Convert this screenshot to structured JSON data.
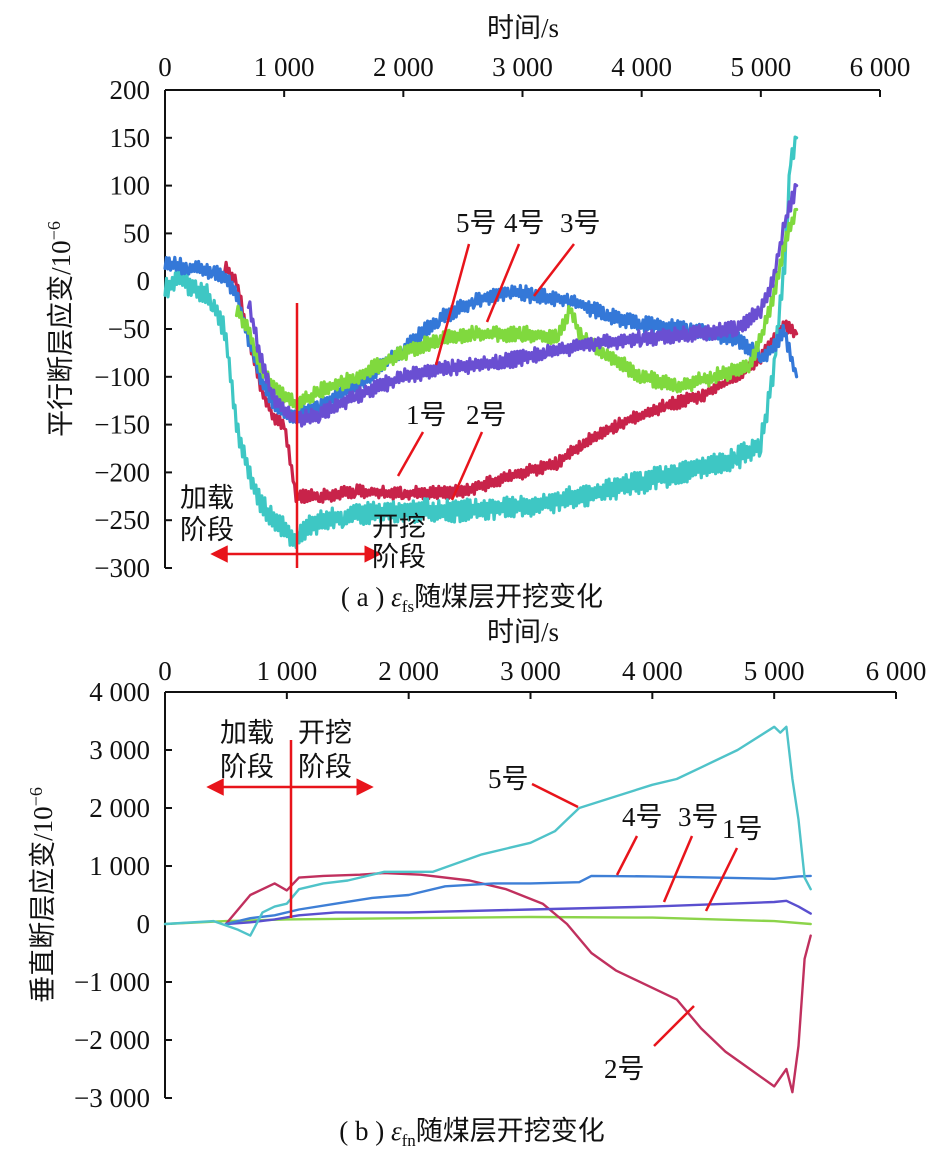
{
  "chart_data": [
    {
      "type": "line",
      "xlabel": "时间/s",
      "ylabel": "平行断层应变/10",
      "ylabel_sup": "−6",
      "caption_prefix": "( a ) ",
      "caption_symbol": "ε",
      "caption_sub": "fs",
      "caption_suffix": "随煤层开挖变化",
      "xlim": [
        0,
        6000
      ],
      "ylim": [
        -300,
        200
      ],
      "xticks": [
        0,
        1000,
        2000,
        3000,
        4000,
        5000,
        6000
      ],
      "xtick_labels": [
        "0",
        "1 000",
        "2 000",
        "3 000",
        "4 000",
        "5 000",
        "6 000"
      ],
      "yticks": [
        200,
        150,
        100,
        50,
        0,
        -50,
        -100,
        -150,
        -200,
        -250,
        -300
      ],
      "ytick_labels": [
        "200",
        "150",
        "100",
        "50",
        "0",
        "−50",
        "−100",
        "−150",
        "−200",
        "−250",
        "−300"
      ],
      "stage_labels": {
        "loading_l1": "加载",
        "loading_l2": "阶段",
        "excavation_l1": "开挖",
        "excavation_l2": "阶段"
      },
      "stage_boundary_x": 1100,
      "series": [
        {
          "name": "1号",
          "color": "#c8234a",
          "noise": 5,
          "x": [
            500,
            600,
            700,
            800,
            900,
            1000,
            1100,
            1300,
            1600,
            2000,
            2500,
            3000,
            3300,
            3500,
            3800,
            4200,
            4500,
            4800,
            5000,
            5100,
            5200,
            5300
          ],
          "y": [
            15,
            0,
            -60,
            -110,
            -140,
            -150,
            -225,
            -225,
            -220,
            -222,
            -220,
            -200,
            -190,
            -170,
            -150,
            -130,
            -120,
            -100,
            -80,
            -60,
            -45,
            -55
          ]
        },
        {
          "name": "2号",
          "color": "#3ec7c4",
          "noise": 9,
          "x": [
            0,
            100,
            400,
            500,
            600,
            700,
            800,
            900,
            1000,
            1100,
            1200,
            1500,
            2000,
            2500,
            3000,
            3500,
            4000,
            4500,
            4800,
            5000,
            5100,
            5200,
            5250,
            5300
          ],
          "y": [
            -10,
            5,
            -20,
            -50,
            -150,
            -200,
            -230,
            -250,
            -260,
            -270,
            -255,
            -245,
            -240,
            -240,
            -235,
            -225,
            -210,
            -195,
            -185,
            -170,
            -100,
            20,
            130,
            150
          ]
        },
        {
          "name": "3号",
          "color": "#3478d8",
          "noise": 6,
          "x": [
            0,
            200,
            400,
            500,
            600,
            700,
            800,
            900,
            1000,
            1100,
            1300,
            1600,
            2000,
            2300,
            2600,
            2900,
            3100,
            3400,
            3700,
            4000,
            4400,
            4800,
            5000,
            5100,
            5200,
            5250,
            5300
          ],
          "y": [
            18,
            15,
            10,
            5,
            -15,
            -60,
            -100,
            -125,
            -140,
            -140,
            -130,
            -110,
            -70,
            -40,
            -20,
            -10,
            -15,
            -20,
            -35,
            -45,
            -50,
            -60,
            -80,
            -70,
            -50,
            -80,
            -100
          ]
        },
        {
          "name": "4号",
          "color": "#80d93e",
          "noise": 6,
          "x": [
            600,
            700,
            800,
            900,
            1000,
            1100,
            1300,
            1600,
            2000,
            2300,
            2600,
            3000,
            3300,
            3400,
            3500,
            3700,
            4000,
            4300,
            4600,
            4900,
            5000,
            5100,
            5200,
            5300
          ],
          "y": [
            -30,
            -50,
            -90,
            -110,
            -120,
            -130,
            -115,
            -100,
            -75,
            -60,
            -55,
            -55,
            -58,
            -30,
            -60,
            -75,
            -100,
            -110,
            -100,
            -90,
            -60,
            -20,
            40,
            75
          ]
        },
        {
          "name": "5号",
          "color": "#6a4fd2",
          "noise": 6,
          "x": [
            700,
            800,
            900,
            1000,
            1100,
            1300,
            1600,
            2000,
            2400,
            2800,
            3200,
            3600,
            4000,
            4400,
            4800,
            5000,
            5100,
            5200,
            5300
          ],
          "y": [
            -20,
            -80,
            -120,
            -135,
            -145,
            -140,
            -120,
            -100,
            -90,
            -85,
            -75,
            -65,
            -60,
            -55,
            -50,
            -30,
            0,
            60,
            100
          ]
        }
      ],
      "labels": [
        "1号",
        "2号",
        "3号",
        "4号",
        "5号"
      ],
      "label_text": {
        "s5": "5号",
        "s4": "4号",
        "s3": "3号",
        "s1": "1号",
        "s2": "2号"
      }
    },
    {
      "type": "line",
      "xlabel": "时间/s",
      "ylabel": "垂直断层应变/10",
      "ylabel_sup": "−6",
      "caption_prefix": "( b ) ",
      "caption_symbol": "ε",
      "caption_sub": "fn",
      "caption_suffix": "随煤层开挖变化",
      "xlim": [
        0,
        6000
      ],
      "ylim": [
        -3000,
        4000
      ],
      "xticks": [
        0,
        1000,
        2000,
        3000,
        4000,
        5000,
        6000
      ],
      "xtick_labels": [
        "0",
        "1 000",
        "2 000",
        "3 000",
        "4 000",
        "5 000",
        "6 000"
      ],
      "yticks": [
        4000,
        3000,
        2000,
        1000,
        0,
        -1000,
        -2000,
        -3000
      ],
      "ytick_labels": [
        "4 000",
        "3 000",
        "2 000",
        "1 000",
        "0",
        "−1 000",
        "−2 000",
        "−3 000"
      ],
      "stage_labels": {
        "loading_l1": "加载",
        "loading_l2": "阶段",
        "excavation_l1": "开挖",
        "excavation_l2": "阶段"
      },
      "stage_boundary_x": 1050,
      "series": [
        {
          "name": "1号",
          "color": "#8cd44a",
          "x": [
            0,
            500,
            1000,
            2000,
            3000,
            4000,
            5000,
            5300
          ],
          "y": [
            0,
            50,
            80,
            100,
            120,
            110,
            50,
            0
          ]
        },
        {
          "name": "2号",
          "color": "#c0305e",
          "x": [
            500,
            600,
            700,
            800,
            900,
            1000,
            1100,
            1300,
            1600,
            1800,
            2100,
            2500,
            2800,
            3100,
            3300,
            3500,
            3700,
            4000,
            4200,
            4400,
            4600,
            4800,
            5000,
            5100,
            5150,
            5200,
            5250,
            5300
          ],
          "y": [
            0,
            250,
            500,
            600,
            700,
            580,
            800,
            830,
            850,
            880,
            850,
            750,
            600,
            350,
            0,
            -500,
            -800,
            -1100,
            -1300,
            -1800,
            -2200,
            -2500,
            -2800,
            -2500,
            -2900,
            -2100,
            -600,
            -200
          ]
        },
        {
          "name": "3号",
          "color": "#5a4fcf",
          "x": [
            500,
            700,
            900,
            1100,
            1400,
            2000,
            3000,
            4000,
            5000,
            5100,
            5200,
            5300
          ],
          "y": [
            0,
            30,
            80,
            150,
            200,
            200,
            250,
            300,
            380,
            400,
            300,
            180
          ]
        },
        {
          "name": "4号",
          "color": "#3e7fd6",
          "x": [
            500,
            700,
            900,
            1100,
            1400,
            1700,
            2000,
            2300,
            2700,
            3000,
            3400,
            3500,
            4000,
            4500,
            5000,
            5200,
            5300
          ],
          "y": [
            0,
            100,
            150,
            250,
            350,
            450,
            500,
            650,
            700,
            700,
            720,
            830,
            820,
            800,
            780,
            820,
            830
          ]
        },
        {
          "name": "5号",
          "color": "#4fc3c9",
          "x": [
            0,
            400,
            600,
            700,
            800,
            900,
            1000,
            1100,
            1300,
            1500,
            1800,
            2200,
            2600,
            3000,
            3200,
            3300,
            3400,
            3700,
            4000,
            4200,
            4400,
            4700,
            5000,
            5050,
            5100,
            5150,
            5200,
            5250,
            5300
          ],
          "y": [
            0,
            50,
            -100,
            -200,
            200,
            300,
            350,
            600,
            700,
            750,
            900,
            900,
            1200,
            1400,
            1600,
            1800,
            2000,
            2200,
            2400,
            2500,
            2700,
            3000,
            3400,
            3300,
            3400,
            2500,
            1800,
            800,
            600
          ]
        }
      ],
      "labels": [
        "1号",
        "2号",
        "3号",
        "4号",
        "5号"
      ],
      "label_text": {
        "s5": "5号",
        "s4": "4号",
        "s3": "3号",
        "s1": "1号",
        "s2": "2号"
      }
    }
  ]
}
